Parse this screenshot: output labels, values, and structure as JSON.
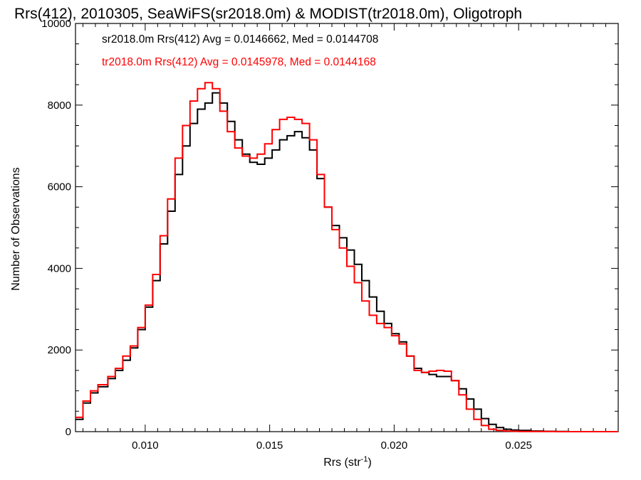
{
  "chart_data": {
    "type": "line",
    "title": "Rrs(412), 2010305, SeaWiFS(sr2018.0m) & MODIST(tr2018.0m), Oligotroph",
    "xlabel": "Rrs (str",
    "xlabel_sup": "-1",
    "xlabel_close": ")",
    "ylabel": "Number of Observations",
    "xlim": [
      0.0072,
      0.029
    ],
    "ylim": [
      0,
      10000
    ],
    "x_ticks": [
      0.01,
      0.015,
      0.02,
      0.025
    ],
    "x_tick_labels": [
      "0.010",
      "0.015",
      "0.020",
      "0.025"
    ],
    "y_ticks": [
      0,
      2000,
      4000,
      6000,
      8000,
      10000
    ],
    "y_tick_labels": [
      "0",
      "2000",
      "4000",
      "6000",
      "8000",
      "10000"
    ],
    "grid": false,
    "legend_position": "top-left (inside plot)",
    "step": "histogram",
    "series": [
      {
        "label": "sr2018.0m Rrs(412) Avg = 0.0146662, Med = 0.0144708",
        "color": "#000000",
        "x": [
          0.0072,
          0.0075,
          0.0078,
          0.0081,
          0.0085,
          0.0088,
          0.0091,
          0.0094,
          0.0097,
          0.01,
          0.0103,
          0.0106,
          0.0109,
          0.0112,
          0.0115,
          0.0118,
          0.0121,
          0.0124,
          0.0127,
          0.013,
          0.0133,
          0.0136,
          0.0139,
          0.0142,
          0.0145,
          0.0148,
          0.0151,
          0.0154,
          0.0157,
          0.016,
          0.0163,
          0.0166,
          0.0169,
          0.0172,
          0.0175,
          0.0178,
          0.0181,
          0.0184,
          0.0187,
          0.019,
          0.0193,
          0.0196,
          0.0199,
          0.0202,
          0.0205,
          0.0208,
          0.0211,
          0.0214,
          0.0217,
          0.022,
          0.0223,
          0.0226,
          0.0229,
          0.0232,
          0.0235,
          0.0238,
          0.0241,
          0.0244,
          0.0247,
          0.025,
          0.0255,
          0.026,
          0.0265,
          0.027,
          0.028,
          0.029
        ],
        "y": [
          300,
          700,
          950,
          1100,
          1300,
          1500,
          1750,
          2050,
          2500,
          3050,
          3700,
          4600,
          5400,
          6300,
          7000,
          7550,
          7900,
          8050,
          8300,
          8050,
          7600,
          7150,
          6800,
          6600,
          6550,
          6700,
          6900,
          7150,
          7250,
          7350,
          7200,
          6900,
          6200,
          5500,
          5050,
          4750,
          4450,
          4100,
          3700,
          3300,
          2950,
          2650,
          2400,
          2200,
          1850,
          1550,
          1450,
          1400,
          1350,
          1350,
          1250,
          1050,
          800,
          550,
          320,
          180,
          100,
          60,
          40,
          30,
          15,
          8,
          5,
          0,
          0,
          0
        ],
        "y_missing": null
      },
      {
        "label": "tr2018.0m Rrs(412) Avg = 0.0145978, Med = 0.0144168",
        "color": "#ff0000",
        "x": [
          0.0072,
          0.0075,
          0.0078,
          0.0081,
          0.0085,
          0.0088,
          0.0091,
          0.0094,
          0.0097,
          0.01,
          0.0103,
          0.0106,
          0.0109,
          0.0112,
          0.0115,
          0.0118,
          0.0121,
          0.0124,
          0.0127,
          0.013,
          0.0133,
          0.0136,
          0.0139,
          0.0142,
          0.0145,
          0.0148,
          0.0151,
          0.0154,
          0.0157,
          0.016,
          0.0163,
          0.0166,
          0.0169,
          0.0172,
          0.0175,
          0.0178,
          0.0181,
          0.0184,
          0.0187,
          0.019,
          0.0193,
          0.0196,
          0.0199,
          0.0202,
          0.0205,
          0.0208,
          0.0211,
          0.0214,
          0.0217,
          0.022,
          0.0223,
          0.0226,
          0.0229,
          0.0232,
          0.0235,
          0.0238,
          0.0241,
          0.0244,
          0.0247,
          0.025,
          0.0255,
          0.026,
          0.0265,
          0.027,
          0.028,
          0.029
        ],
        "y": [
          350,
          750,
          1000,
          1150,
          1350,
          1550,
          1850,
          2100,
          2550,
          3100,
          3850,
          4800,
          5700,
          6700,
          7500,
          8100,
          8400,
          8550,
          8400,
          7850,
          7350,
          6950,
          6750,
          6700,
          6800,
          7050,
          7400,
          7650,
          7700,
          7650,
          7550,
          7150,
          6300,
          5500,
          4950,
          4500,
          4050,
          3650,
          3200,
          2850,
          2650,
          2550,
          2350,
          2150,
          1850,
          1500,
          1450,
          1480,
          1500,
          1480,
          1250,
          900,
          550,
          300,
          150,
          60,
          30,
          15,
          10,
          5,
          5,
          5,
          0,
          0,
          0,
          0
        ]
      }
    ]
  }
}
